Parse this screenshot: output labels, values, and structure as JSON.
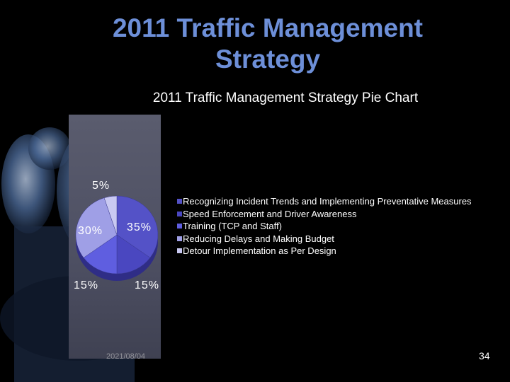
{
  "slide": {
    "title_line1": "2011 Traffic Management",
    "title_line2": "Strategy",
    "footer_date": "2021/08/04",
    "page_number": "34"
  },
  "colors": {
    "title": "#6d8fd8",
    "background": "#000000"
  },
  "chart_data": {
    "type": "pie",
    "title": "2011 Traffic Management Strategy Pie Chart",
    "slices": [
      {
        "label": "Recognizing Incident Trends and Implementing Preventative Measures",
        "value": 35,
        "display": "35%",
        "color": "#5452c7"
      },
      {
        "label": "Speed Enforcement and Driver Awareness",
        "value": 15,
        "display": "15%",
        "color": "#4a47c0"
      },
      {
        "label": "Training (TCP and Staff)",
        "value": 15,
        "display": "15%",
        "color": "#5f5ee0"
      },
      {
        "label": "Reducing Delays and Making Budget",
        "value": 30,
        "display": "30%",
        "color": "#9f9fe6"
      },
      {
        "label": "Detour Implementation as Per Design",
        "value": 5,
        "display": "5%",
        "color": "#c9c9f2"
      }
    ],
    "legend_position": "right"
  }
}
